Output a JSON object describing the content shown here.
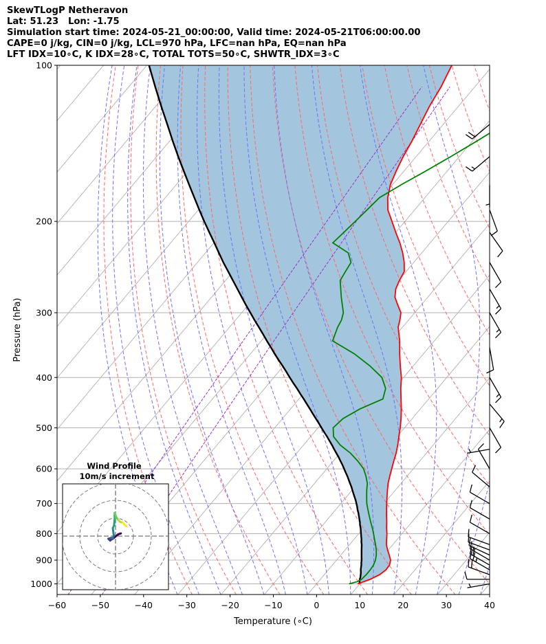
{
  "header": {
    "line1": "SkewTLogP Netheravon",
    "line2": "Lat: 51.23   Lon: -1.75",
    "line3": "Simulation start time: 2024-05-21_00:00:00, Valid time: 2024-05-21T06:00:00.00",
    "line4": "CAPE=0 j/kg, CIN=0 j/kg, LCL=970 hPa, LFC=nan hPa, EQ=nan hPa",
    "line5": "LFT IDX=10∘C, K IDX=28∘C, TOTAL TOTS=50∘C, SHWTR_IDX=3∘C"
  },
  "axes": {
    "xlabel": "Temperature (∘C)",
    "ylabel": "Pressure (hPa)"
  },
  "inset": {
    "title1": "Wind Profile",
    "title2": "10m/s increment"
  },
  "chart_data": {
    "type": "line",
    "subtype": "skew-T log-P diagram",
    "xlim": [
      -60,
      40
    ],
    "ylim": [
      1050,
      100
    ],
    "y_scale": "log (inverted)",
    "xticks": [
      -60,
      -50,
      -40,
      -30,
      -20,
      -10,
      0,
      10,
      20,
      30,
      40
    ],
    "yticks": [
      1000,
      900,
      800,
      700,
      600,
      500,
      400,
      300,
      200,
      100
    ],
    "colors": {
      "temperature": "#ff0000",
      "dewpoint": "#008000",
      "parcel": "#000000",
      "shade": "#a3c6de",
      "dry_adiabats": "#ff6666",
      "moist_adiabats": "#6f6fff",
      "mixing_ratio": "#9b30c7",
      "isotherms": "#b0b0b0"
    },
    "series": [
      {
        "key": "temperature",
        "p": [
          1000,
          980,
          960,
          940,
          920,
          900,
          880,
          860,
          840,
          820,
          800,
          780,
          760,
          740,
          720,
          700,
          680,
          660,
          640,
          620,
          600,
          580,
          560,
          540,
          520,
          500,
          480,
          460,
          440,
          420,
          400,
          380,
          360,
          340,
          320,
          310,
          300,
          290,
          280,
          270,
          260,
          250,
          240,
          230,
          220,
          210,
          200,
          190,
          180,
          170,
          160,
          150,
          140,
          130,
          120,
          110,
          100
        ],
        "t": [
          9.5,
          11.5,
          12.8,
          13.3,
          13.2,
          12.5,
          11.2,
          9.8,
          8.5,
          7.5,
          6.5,
          5.3,
          4.2,
          3.0,
          1.8,
          0.6,
          -0.6,
          -1.8,
          -3.0,
          -4.0,
          -5.0,
          -6.0,
          -7.0,
          -8.2,
          -9.6,
          -11.0,
          -12.6,
          -14.4,
          -16.4,
          -18.5,
          -20.5,
          -23.0,
          -25.5,
          -28.0,
          -31.0,
          -32.0,
          -33.2,
          -35.4,
          -37.6,
          -39.0,
          -39.8,
          -40.4,
          -42.2,
          -44.4,
          -47.0,
          -50.0,
          -53.0,
          -56.2,
          -58.6,
          -60.5,
          -61.8,
          -63.0,
          -64.0,
          -65.3,
          -66.7,
          -67.8,
          -69.5
        ]
      },
      {
        "key": "dewpoint",
        "p": [
          1000,
          990,
          980,
          960,
          940,
          920,
          900,
          880,
          860,
          840,
          820,
          800,
          780,
          760,
          740,
          720,
          700,
          680,
          660,
          640,
          620,
          600,
          580,
          560,
          540,
          520,
          500,
          480,
          460,
          440,
          420,
          400,
          380,
          360,
          340,
          320,
          310,
          300,
          280,
          260,
          250,
          240,
          230,
          220,
          210,
          200,
          190,
          180,
          170,
          160,
          150,
          140,
          130,
          120,
          110,
          100
        ],
        "t": [
          7.5,
          9.0,
          9.5,
          9.7,
          9.7,
          9.5,
          9.0,
          8.2,
          7.2,
          6.0,
          4.7,
          3.4,
          2.0,
          0.5,
          -1.0,
          -2.5,
          -4.0,
          -5.3,
          -6.6,
          -7.8,
          -9.5,
          -11.5,
          -14.3,
          -17.5,
          -21.5,
          -24.7,
          -26.5,
          -26.0,
          -24.0,
          -20.6,
          -22.0,
          -25.0,
          -30.0,
          -36.0,
          -43.5,
          -45.0,
          -45.5,
          -46.5,
          -50.0,
          -53.5,
          -54.0,
          -54.5,
          -57.0,
          -62.5,
          -62.0,
          -61.5,
          -61.0,
          -60.5,
          -58.0,
          -55.0,
          -52.0,
          -49.0,
          -46.0,
          -43.0,
          -40.0,
          -37.0
        ]
      },
      {
        "key": "parcel",
        "p": [
          1000,
          990,
          980,
          970,
          960,
          950,
          940,
          930,
          920,
          910,
          900,
          890,
          880,
          870,
          860,
          850,
          840,
          830,
          820,
          810,
          800,
          790,
          780,
          770,
          760,
          750,
          740,
          730,
          720,
          710,
          700,
          690,
          680,
          670,
          660,
          650,
          640,
          630,
          620,
          610,
          600,
          590,
          580,
          570,
          560,
          550,
          540,
          530,
          520,
          510,
          500,
          490,
          480,
          470,
          460,
          450,
          440,
          430,
          420,
          410,
          400,
          390,
          380,
          370,
          360,
          350,
          340,
          330,
          320,
          310,
          300,
          290,
          280,
          270,
          260,
          250,
          240,
          230,
          220,
          210,
          200,
          190,
          180,
          170,
          160,
          150,
          140,
          130,
          120,
          110,
          100
        ],
        "t": [
          9.9,
          9.5,
          9.1,
          8.8,
          8.4,
          8.0,
          7.5,
          7.1,
          6.7,
          6.2,
          5.8,
          5.3,
          4.8,
          4.3,
          3.8,
          3.3,
          2.8,
          2.2,
          1.7,
          1.1,
          0.5,
          -0.1,
          -0.7,
          -1.4,
          -2.0,
          -2.7,
          -3.4,
          -4.1,
          -4.9,
          -5.6,
          -6.4,
          -7.2,
          -8.1,
          -9.0,
          -9.9,
          -10.8,
          -11.8,
          -12.8,
          -13.8,
          -14.9,
          -16.0,
          -17.1,
          -18.3,
          -19.5,
          -20.8,
          -22.1,
          -23.4,
          -24.8,
          -26.2,
          -27.7,
          -29.2,
          -30.7,
          -32.3,
          -33.9,
          -35.5,
          -37.2,
          -38.9,
          -40.7,
          -42.5,
          -44.4,
          -46.3,
          -48.2,
          -50.2,
          -52.3,
          -54.4,
          -56.5,
          -58.7,
          -60.9,
          -63.2,
          -65.6,
          -68.0,
          -70.5,
          -73.0,
          -75.6,
          -78.3,
          -81.1,
          -84.0,
          -86.9,
          -89.9,
          -93.1,
          -96.4,
          -99.8,
          -103.3,
          -107.0,
          -110.9,
          -115.0,
          -119.3,
          -123.8,
          -128.7,
          -133.9,
          -139.5
        ]
      }
    ],
    "wind_barbs": [
      {
        "p": 1000,
        "speed_kt": 5,
        "dir": 260
      },
      {
        "p": 980,
        "speed_kt": 10,
        "dir": 270
      },
      {
        "p": 960,
        "speed_kt": 20,
        "dir": 290
      },
      {
        "p": 940,
        "speed_kt": 25,
        "dir": 300
      },
      {
        "p": 920,
        "speed_kt": 20,
        "dir": 300
      },
      {
        "p": 900,
        "speed_kt": 15,
        "dir": 300
      },
      {
        "p": 880,
        "speed_kt": 10,
        "dir": 295
      },
      {
        "p": 860,
        "speed_kt": 10,
        "dir": 290
      },
      {
        "p": 840,
        "speed_kt": 10,
        "dir": 290
      },
      {
        "p": 800,
        "speed_kt": 10,
        "dir": 300
      },
      {
        "p": 750,
        "speed_kt": 10,
        "dir": 300
      },
      {
        "p": 700,
        "speed_kt": 10,
        "dir": 300
      },
      {
        "p": 650,
        "speed_kt": 10,
        "dir": 310
      },
      {
        "p": 600,
        "speed_kt": 10,
        "dir": 330
      },
      {
        "p": 550,
        "speed_kt": 5,
        "dir": 260
      },
      {
        "p": 500,
        "speed_kt": 10,
        "dir": 150
      },
      {
        "p": 450,
        "speed_kt": 15,
        "dir": 140
      },
      {
        "p": 400,
        "speed_kt": 15,
        "dir": 150
      },
      {
        "p": 350,
        "speed_kt": 10,
        "dir": 170
      },
      {
        "p": 300,
        "speed_kt": 15,
        "dir": 150
      },
      {
        "p": 270,
        "speed_kt": 15,
        "dir": 150
      },
      {
        "p": 240,
        "speed_kt": 10,
        "dir": 150
      },
      {
        "p": 210,
        "speed_kt": 10,
        "dir": 145
      },
      {
        "p": 190,
        "speed_kt": 10,
        "dir": 160
      },
      {
        "p": 170,
        "speed_kt": 5,
        "dir": 180
      },
      {
        "p": 150,
        "speed_kt": 15,
        "dir": 230
      },
      {
        "p": 130,
        "speed_kt": 20,
        "dir": 230
      }
    ],
    "hodograph": {
      "rings_ms": [
        10,
        20,
        30
      ],
      "points": [
        {
          "u": 3.0,
          "v": 1.5
        },
        {
          "u": 1.5,
          "v": 1.0
        },
        {
          "u": -1.5,
          "v": -1.5
        },
        {
          "u": -2.5,
          "v": -2.0
        },
        {
          "u": -3.0,
          "v": -2.5
        },
        {
          "u": -3.5,
          "v": -2.0
        },
        {
          "u": -4.0,
          "v": -1.5
        },
        {
          "u": -2.5,
          "v": -1.0
        },
        {
          "u": -1.5,
          "v": -1.5
        },
        {
          "u": -1.0,
          "v": 0.5
        },
        {
          "u": -1.2,
          "v": 2.0
        },
        {
          "u": -1.5,
          "v": 4.5
        },
        {
          "u": -0.8,
          "v": 6.0
        },
        {
          "u": -0.5,
          "v": 9.5
        },
        {
          "u": -0.5,
          "v": 11.5
        },
        {
          "u": -0.5,
          "v": 13.0
        },
        {
          "u": 0.5,
          "v": 10.5
        },
        {
          "u": 1.5,
          "v": 9.0
        },
        {
          "u": 2.5,
          "v": 8.0
        },
        {
          "u": 4.0,
          "v": 7.5
        },
        {
          "u": 5.0,
          "v": 6.5
        },
        {
          "u": 6.0,
          "v": 5.5
        }
      ]
    }
  }
}
